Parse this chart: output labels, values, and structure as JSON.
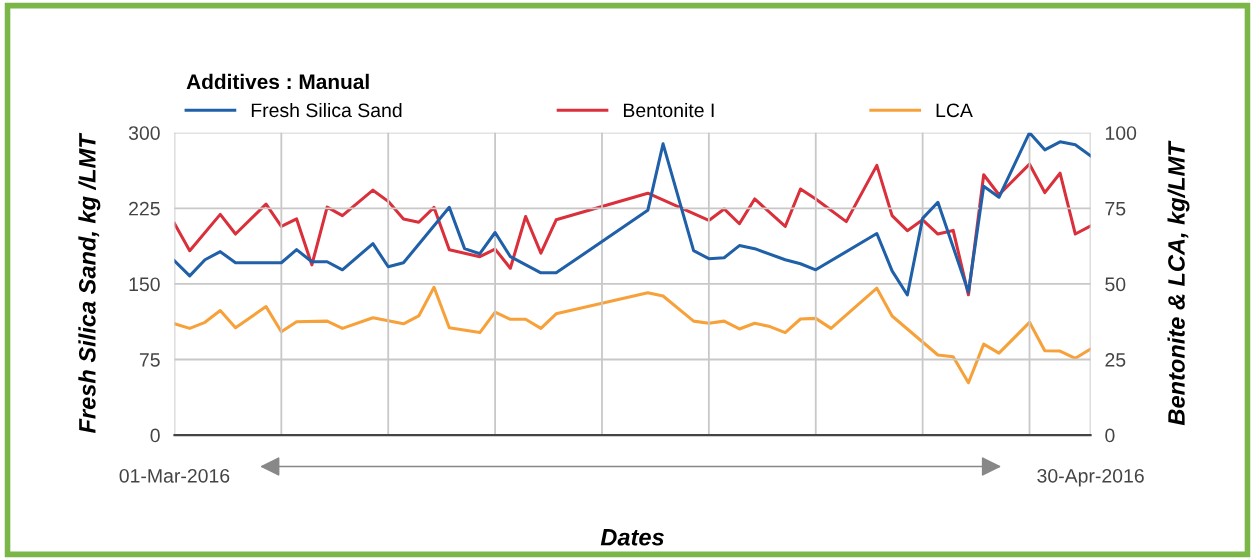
{
  "chart_data": {
    "type": "line",
    "legend_title": "Additives : Manual",
    "xlabel": "Dates",
    "ylabel": "Fresh Silica Sand, kg /LMT",
    "y2label": "Bentonite & LCA, kg/LMT",
    "xlim": [
      "2016-03-01",
      "2016-04-30"
    ],
    "xticks": [
      {
        "value": "2016-03-01",
        "label": "01-Mar-2016"
      },
      {
        "value": "2016-04-30",
        "label": "30-Apr-2016"
      },
      {
        "value": "2016-03-08",
        "label": null
      },
      {
        "value": "2016-03-15",
        "label": null
      },
      {
        "value": "2016-03-22",
        "label": null
      },
      {
        "value": "2016-03-29",
        "label": null
      },
      {
        "value": "2016-04-05",
        "label": null
      },
      {
        "value": "2016-04-12",
        "label": null
      },
      {
        "value": "2016-04-19",
        "label": null
      },
      {
        "value": "2016-04-26",
        "label": null
      }
    ],
    "ylim": [
      0,
      300
    ],
    "yticks": [
      0,
      75,
      150,
      225,
      300
    ],
    "y2lim": [
      0,
      100
    ],
    "y2ticks": [
      0,
      25,
      50,
      75,
      100
    ],
    "grid": true,
    "legend": "top",
    "marker": "none",
    "line_style": "solid",
    "series": [
      {
        "name": "Fresh Silica Sand",
        "color": "#1f60a8",
        "x": [
          "2016-03-01",
          "2016-03-02",
          "2016-03-03",
          "2016-03-04",
          "2016-03-05",
          "2016-03-08",
          "2016-03-09",
          "2016-03-10",
          "2016-03-11",
          "2016-03-12",
          "2016-03-14",
          "2016-03-15",
          "2016-03-16",
          "2016-03-19",
          "2016-03-20",
          "2016-03-21",
          "2016-03-22",
          "2016-03-23",
          "2016-03-25",
          "2016-03-26",
          "2016-04-01",
          "2016-04-02",
          "2016-04-04",
          "2016-04-05",
          "2016-04-06",
          "2016-04-07",
          "2016-04-08",
          "2016-04-10",
          "2016-04-11",
          "2016-04-12",
          "2016-04-16",
          "2016-04-17",
          "2016-04-18",
          "2016-04-19",
          "2016-04-20",
          "2016-04-22",
          "2016-04-23",
          "2016-04-24",
          "2016-04-26",
          "2016-04-27",
          "2016-04-28",
          "2016-04-29",
          "2016-04-30"
        ],
        "values": [
          173,
          158,
          174,
          182,
          171,
          171,
          184,
          172,
          172,
          164,
          190,
          167,
          171,
          226,
          185,
          180,
          201,
          177,
          161,
          161,
          223,
          289,
          183,
          175,
          176,
          188,
          185,
          174,
          170,
          164,
          200,
          163,
          139,
          215,
          231,
          142,
          247,
          236,
          300,
          283,
          291,
          288,
          277
        ]
      },
      {
        "name": "Bentonite I",
        "color": "#d9303b",
        "axis": "y2",
        "x": [
          "2016-03-01",
          "2016-03-02",
          "2016-03-04",
          "2016-03-05",
          "2016-03-07",
          "2016-03-08",
          "2016-03-09",
          "2016-03-10",
          "2016-03-11",
          "2016-03-12",
          "2016-03-14",
          "2016-03-15",
          "2016-03-16",
          "2016-03-17",
          "2016-03-18",
          "2016-03-19",
          "2016-03-21",
          "2016-03-22",
          "2016-03-23",
          "2016-03-24",
          "2016-03-25",
          "2016-03-26",
          "2016-04-01",
          "2016-04-05",
          "2016-04-06",
          "2016-04-07",
          "2016-04-08",
          "2016-04-10",
          "2016-04-11",
          "2016-04-12",
          "2016-04-14",
          "2016-04-16",
          "2016-04-17",
          "2016-04-18",
          "2016-04-19",
          "2016-04-20",
          "2016-04-21",
          "2016-04-22",
          "2016-04-23",
          "2016-04-24",
          "2016-04-26",
          "2016-04-27",
          "2016-04-28",
          "2016-04-29",
          "2016-04-30"
        ],
        "values": [
          70,
          61,
          73,
          66.5,
          76.4,
          69,
          71.5,
          56.3,
          75.4,
          72.6,
          81,
          77.3,
          71.5,
          70.4,
          75.3,
          61.3,
          59,
          61.5,
          55.2,
          72.3,
          60.2,
          71.2,
          80,
          71,
          74.8,
          69.9,
          78.1,
          69,
          81.4,
          78.1,
          70.6,
          89.2,
          72.6,
          67.6,
          71.2,
          66.5,
          67.7,
          46.4,
          86.1,
          79.5,
          89.6,
          80.2,
          86.6,
          66.5,
          69.2
        ]
      },
      {
        "name": "LCA",
        "color": "#f7a13a",
        "axis": "y2",
        "x": [
          "2016-03-01",
          "2016-03-02",
          "2016-03-03",
          "2016-03-04",
          "2016-03-05",
          "2016-03-07",
          "2016-03-08",
          "2016-03-09",
          "2016-03-11",
          "2016-03-12",
          "2016-03-14",
          "2016-03-16",
          "2016-03-17",
          "2016-03-18",
          "2016-03-19",
          "2016-03-21",
          "2016-03-22",
          "2016-03-23",
          "2016-03-24",
          "2016-03-25",
          "2016-03-26",
          "2016-04-01",
          "2016-04-02",
          "2016-04-04",
          "2016-04-05",
          "2016-04-06",
          "2016-04-07",
          "2016-04-08",
          "2016-04-09",
          "2016-04-10",
          "2016-04-11",
          "2016-04-12",
          "2016-04-13",
          "2016-04-16",
          "2016-04-17",
          "2016-04-20",
          "2016-04-21",
          "2016-04-22",
          "2016-04-23",
          "2016-04-24",
          "2016-04-26",
          "2016-04-27",
          "2016-04-28",
          "2016-04-29",
          "2016-04-30"
        ],
        "values": [
          36.8,
          35.3,
          37.3,
          41.2,
          35.5,
          42.5,
          34.2,
          37.5,
          37.7,
          35.3,
          38.8,
          36.8,
          39.4,
          48.9,
          35.5,
          33.9,
          40.7,
          38.3,
          38.3,
          35.3,
          40.1,
          47.1,
          46,
          37.7,
          37,
          37.7,
          35.1,
          37,
          35.9,
          33.9,
          38.4,
          38.6,
          35.3,
          48.6,
          39.4,
          26.5,
          25.9,
          17.3,
          30.1,
          27.1,
          37.3,
          27.9,
          27.8,
          25.4,
          28.5
        ]
      }
    ]
  }
}
